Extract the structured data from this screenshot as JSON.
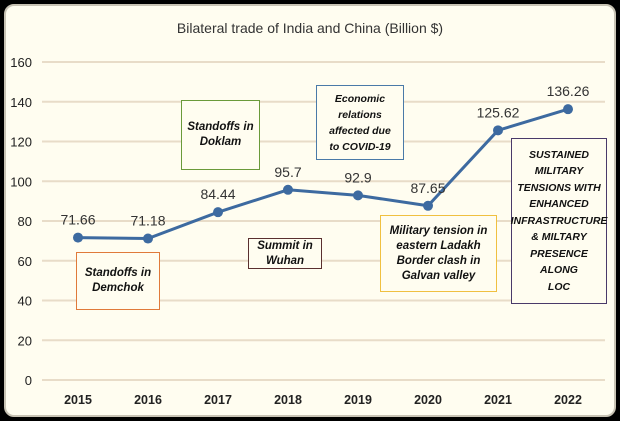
{
  "chart_data": {
    "type": "line",
    "title": "Bilateral trade of India and China (Billion $)",
    "xlabel": "",
    "ylabel": "",
    "categories": [
      "2015",
      "2016",
      "2017",
      "2018",
      "2019",
      "2020",
      "2021",
      "2022"
    ],
    "values": [
      71.66,
      71.18,
      84.44,
      95.7,
      92.9,
      87.65,
      125.62,
      136.26
    ],
    "data_labels": [
      "71.66",
      "71.18",
      "84.44",
      "95.7",
      "92.9",
      "87.65",
      "125.62",
      "136.26"
    ],
    "ylim": [
      0,
      160
    ],
    "yticks": [
      0,
      20,
      40,
      60,
      80,
      100,
      120,
      140,
      160
    ],
    "grid": true,
    "line_color": "#3d6aa0",
    "annotations": [
      {
        "text": "Standoffs in\nDemchok",
        "border": "#e07a3a"
      },
      {
        "text": "Standoffs in\nDoklam",
        "border": "#6a9a3a"
      },
      {
        "text": "Summit in\nWuhan",
        "border": "#5a3030"
      },
      {
        "text": "Economic\nrelations\naffected due\nto COVID-19",
        "border": "#4a7aa8"
      },
      {
        "text": "Military tension in\neastern Ladakh\nBorder clash in\nGalvan valley",
        "border": "#f0c040"
      },
      {
        "text": "SUSTAINED\nMILITARY\nTENSIONS WITH\nENHANCED\nINFRASTRUCTURE\n& MILTARY\nPRESENCE ALONG\nLOC",
        "border": "#4a3a6a"
      }
    ]
  }
}
